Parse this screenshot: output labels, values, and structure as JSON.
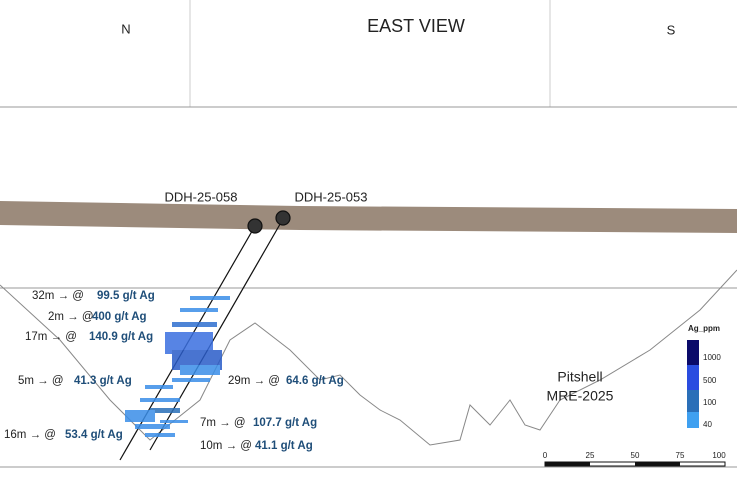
{
  "header": {
    "north": "N",
    "title": "EAST VIEW",
    "south": "S"
  },
  "drillholes": [
    {
      "label": "DDH-25-058"
    },
    {
      "label": "DDH-25-053"
    }
  ],
  "intercepts": [
    {
      "interval": "32m → @",
      "grade": "99.5 g/t Ag"
    },
    {
      "interval": "2m → @",
      "grade": "400 g/t Ag"
    },
    {
      "interval": "17m → @",
      "grade": "140.9 g/t Ag"
    },
    {
      "interval": "5m → @",
      "grade": "41.3 g/t Ag"
    },
    {
      "interval": "29m → @",
      "grade": "64.6 g/t Ag"
    },
    {
      "interval": "7m → @",
      "grade": "107.7 g/t Ag"
    },
    {
      "interval": "16m → @",
      "grade": "53.4 g/t Ag"
    },
    {
      "interval": "10m → @",
      "grade": "41.1 g/t Ag"
    }
  ],
  "pitshell": [
    "Pitshell",
    "MRE-2025"
  ],
  "legend": {
    "title": "Ag_ppm",
    "levels": [
      "1000",
      "500",
      "100",
      "40"
    ]
  },
  "scale_bar": [
    "0",
    "25",
    "50",
    "75",
    "100"
  ]
}
